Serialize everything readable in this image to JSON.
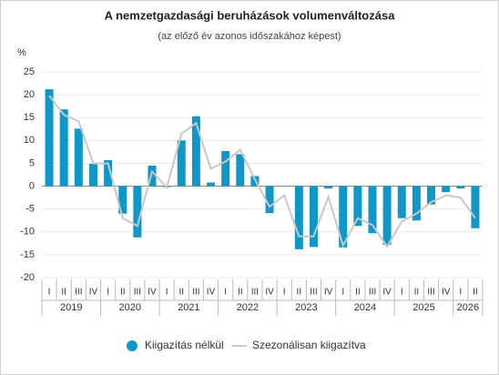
{
  "chart_data": {
    "type": "bar_line",
    "title": "A nemzetgazdasági beruházások volumenváltozása",
    "subtitle": "(az előző év azonos időszakához képest)",
    "y_axis_label": "%",
    "categories": [
      "I",
      "II",
      "III",
      "IV",
      "I",
      "II",
      "III",
      "IV",
      "I",
      "II",
      "III",
      "IV",
      "I",
      "II",
      "III",
      "IV",
      "I",
      "II",
      "III",
      "IV",
      "I",
      "II",
      "III",
      "IV",
      "I",
      "II",
      "III",
      "IV",
      "I",
      "II"
    ],
    "years": [
      "2019",
      "2020",
      "2021",
      "2022",
      "2023",
      "2024",
      "2025",
      "2026"
    ],
    "series": [
      {
        "name": "Kiigazítás nélkül",
        "color": "#0f97c7",
        "kind": "bar",
        "values": [
          21.2,
          16.8,
          12.6,
          4.9,
          5.7,
          -6.0,
          -11.2,
          4.5,
          -0.2,
          10.0,
          15.3,
          0.8,
          7.7,
          7.0,
          2.2,
          -5.9,
          0.1,
          -13.8,
          -13.3,
          -0.5,
          -13.4,
          -8.7,
          -10.3,
          -12.8,
          -7.0,
          -7.5,
          -4.0,
          -1.3,
          -0.5,
          -9.2
        ]
      },
      {
        "name": "Szezonálisan kiigazítva",
        "color": "#c8c8c8",
        "kind": "line",
        "values": [
          19.8,
          15.6,
          14.2,
          5.0,
          5.0,
          -7.0,
          -8.7,
          3.2,
          -0.3,
          11.5,
          13.8,
          3.8,
          5.4,
          8.0,
          1.5,
          -4.5,
          -2.0,
          -11.0,
          -11.0,
          -2.3,
          -13.0,
          -7.0,
          -8.5,
          -13.2,
          -7.7,
          -6.0,
          -3.5,
          -2.0,
          -2.5,
          -7.0
        ]
      }
    ],
    "ylim": [
      -20,
      25
    ],
    "yticks": [
      -20,
      -15,
      -10,
      -5,
      0,
      5,
      10,
      15,
      20,
      25
    ],
    "grid": true
  }
}
